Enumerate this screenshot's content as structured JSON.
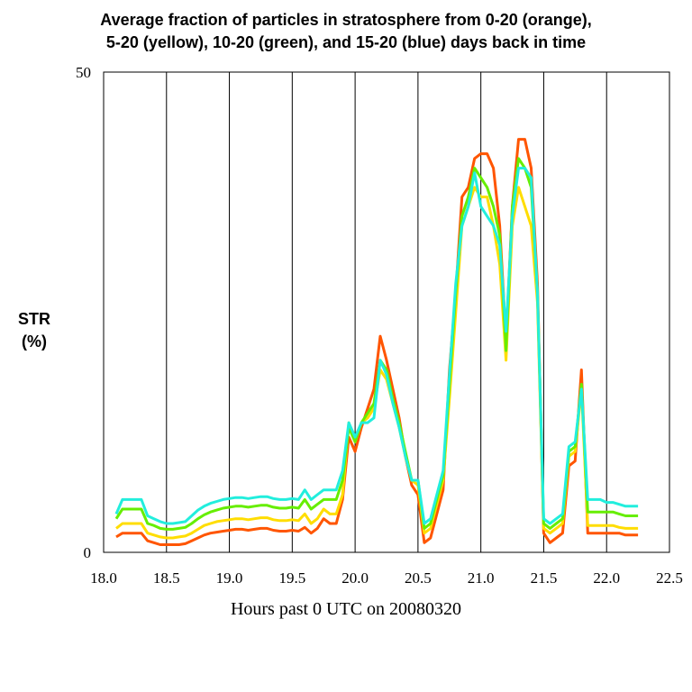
{
  "chart_data": {
    "type": "line",
    "title_lines": [
      "Average fraction of particles in stratosphere from 0-20 (orange),",
      "5-20 (yellow), 10-20 (green), and 15-20 (blue) days back in time"
    ],
    "ylabel_lines": [
      "STR",
      "(%)"
    ],
    "xlabel": "Hours past 0 UTC on 20080320",
    "xlim": [
      18.0,
      22.5
    ],
    "ylim": [
      0,
      50
    ],
    "x_ticks": [
      "18.0",
      "18.5",
      "19.0",
      "19.5",
      "20.0",
      "20.5",
      "21.0",
      "21.5",
      "22.0",
      "22.5"
    ],
    "x_tick_values": [
      18.0,
      18.5,
      19.0,
      19.5,
      20.0,
      20.5,
      21.0,
      21.5,
      22.0,
      22.5
    ],
    "y_ticks": [
      "0",
      "50"
    ],
    "y_tick_values": [
      0,
      50
    ],
    "vertical_grid": true,
    "horizontal_grid": false,
    "x": [
      18.1,
      18.15,
      18.2,
      18.25,
      18.3,
      18.35,
      18.4,
      18.45,
      18.5,
      18.55,
      18.6,
      18.65,
      18.7,
      18.75,
      18.8,
      18.85,
      18.9,
      18.95,
      19.0,
      19.05,
      19.1,
      19.15,
      19.2,
      19.25,
      19.3,
      19.35,
      19.4,
      19.45,
      19.5,
      19.55,
      19.6,
      19.65,
      19.7,
      19.75,
      19.8,
      19.85,
      19.9,
      19.95,
      20.0,
      20.05,
      20.1,
      20.15,
      20.2,
      20.25,
      20.3,
      20.35,
      20.4,
      20.45,
      20.5,
      20.55,
      20.6,
      20.65,
      20.7,
      20.75,
      20.8,
      20.85,
      20.9,
      20.95,
      21.0,
      21.05,
      21.1,
      21.15,
      21.2,
      21.25,
      21.3,
      21.35,
      21.4,
      21.45,
      21.5,
      21.55,
      21.6,
      21.65,
      21.7,
      21.75,
      21.8,
      21.85,
      21.9,
      21.95,
      22.0,
      22.05,
      22.1,
      22.15,
      22.2,
      22.25
    ],
    "series": [
      {
        "color": "#ff5500",
        "values": [
          1.6,
          2.0,
          2.0,
          2.0,
          2.0,
          1.2,
          1.0,
          0.8,
          0.8,
          0.8,
          0.8,
          0.9,
          1.2,
          1.5,
          1.8,
          2.0,
          2.1,
          2.2,
          2.3,
          2.4,
          2.4,
          2.3,
          2.4,
          2.5,
          2.5,
          2.3,
          2.2,
          2.2,
          2.3,
          2.2,
          2.6,
          2.0,
          2.5,
          3.5,
          3.0,
          3.0,
          5.5,
          12.0,
          10.5,
          13.0,
          15.0,
          17.0,
          22.5,
          20.0,
          17.0,
          14.0,
          10.0,
          7.0,
          6.0,
          1.0,
          1.5,
          4.0,
          6.5,
          19.0,
          27.0,
          37.0,
          38.0,
          41.0,
          41.5,
          41.5,
          40.0,
          34.0,
          22.0,
          36.0,
          43.0,
          43.0,
          40.0,
          28.0,
          2.0,
          1.0,
          1.5,
          2.0,
          9.0,
          9.5,
          19.0,
          2.0,
          2.0,
          2.0,
          2.0,
          2.0,
          2.0,
          1.8,
          1.8,
          1.8
        ]
      },
      {
        "color": "#ffdd00",
        "values": [
          2.5,
          3.0,
          3.0,
          3.0,
          3.0,
          2.0,
          1.8,
          1.6,
          1.5,
          1.5,
          1.6,
          1.7,
          2.0,
          2.4,
          2.8,
          3.0,
          3.2,
          3.3,
          3.4,
          3.5,
          3.5,
          3.4,
          3.5,
          3.6,
          3.6,
          3.4,
          3.3,
          3.3,
          3.4,
          3.3,
          4.0,
          3.0,
          3.5,
          4.5,
          4.0,
          4.0,
          6.0,
          13.5,
          11.5,
          13.5,
          14.0,
          15.0,
          19.0,
          18.0,
          15.5,
          13.0,
          10.0,
          7.5,
          7.0,
          2.0,
          2.5,
          5.0,
          7.5,
          16.0,
          25.0,
          34.0,
          36.0,
          38.0,
          37.0,
          37.0,
          34.0,
          30.0,
          20.0,
          34.0,
          38.0,
          36.0,
          34.0,
          26.0,
          2.5,
          2.0,
          2.5,
          3.0,
          10.0,
          10.5,
          17.0,
          2.8,
          2.8,
          2.8,
          2.8,
          2.8,
          2.6,
          2.5,
          2.5,
          2.5
        ]
      },
      {
        "color": "#66ee00",
        "values": [
          3.5,
          4.5,
          4.5,
          4.5,
          4.5,
          3.0,
          2.8,
          2.5,
          2.4,
          2.4,
          2.5,
          2.6,
          3.0,
          3.5,
          3.9,
          4.2,
          4.4,
          4.6,
          4.7,
          4.8,
          4.8,
          4.7,
          4.8,
          4.9,
          4.9,
          4.7,
          4.6,
          4.6,
          4.7,
          4.6,
          5.5,
          4.5,
          5.0,
          5.5,
          5.5,
          5.5,
          7.5,
          13.0,
          11.5,
          13.5,
          14.5,
          15.5,
          20.0,
          19.0,
          16.0,
          13.5,
          10.5,
          7.5,
          7.5,
          2.5,
          3.0,
          5.5,
          8.0,
          17.5,
          27.0,
          35.0,
          37.0,
          40.0,
          39.0,
          38.0,
          36.0,
          33.0,
          21.0,
          36.0,
          41.0,
          40.0,
          38.0,
          27.0,
          3.0,
          2.5,
          3.0,
          3.5,
          10.5,
          11.0,
          17.5,
          4.2,
          4.2,
          4.2,
          4.2,
          4.2,
          4.0,
          3.8,
          3.8,
          3.8
        ]
      },
      {
        "color": "#22eedd",
        "values": [
          4.0,
          5.5,
          5.5,
          5.5,
          5.5,
          3.8,
          3.5,
          3.2,
          3.0,
          3.0,
          3.1,
          3.2,
          3.8,
          4.4,
          4.8,
          5.1,
          5.3,
          5.5,
          5.6,
          5.7,
          5.7,
          5.6,
          5.7,
          5.8,
          5.8,
          5.6,
          5.5,
          5.5,
          5.6,
          5.5,
          6.5,
          5.5,
          6.0,
          6.5,
          6.5,
          6.5,
          8.5,
          13.5,
          12.0,
          13.5,
          13.5,
          14.0,
          20.0,
          18.5,
          15.5,
          13.0,
          10.0,
          7.5,
          7.5,
          3.0,
          3.5,
          6.0,
          8.5,
          18.5,
          28.0,
          34.0,
          36.0,
          39.5,
          36.0,
          35.0,
          34.0,
          32.0,
          23.0,
          35.0,
          40.0,
          40.0,
          39.0,
          27.0,
          3.5,
          3.0,
          3.5,
          4.0,
          11.0,
          11.5,
          17.0,
          5.5,
          5.5,
          5.5,
          5.2,
          5.2,
          5.0,
          4.8,
          4.8,
          4.8
        ]
      }
    ]
  }
}
